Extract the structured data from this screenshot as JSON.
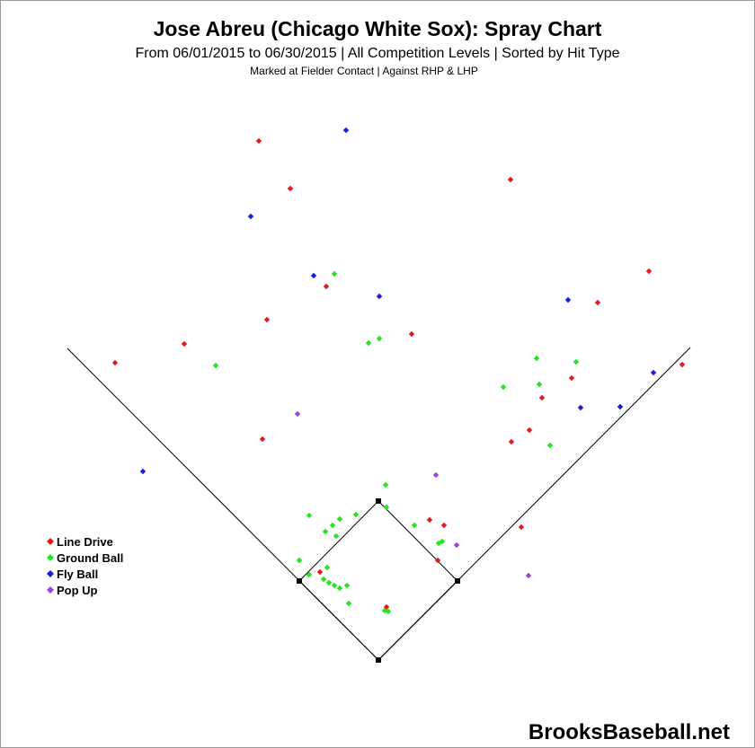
{
  "chart_data": {
    "type": "scatter",
    "title": "Jose Abreu (Chicago White Sox): Spray Chart",
    "subtitle": "From 06/01/2015 to 06/30/2015 | All Competition Levels | Sorted by Hit Type",
    "caption": "Marked at Fielder Contact |   Against RHP & LHP",
    "watermark": "BrooksBaseball.net",
    "xlim": [
      -421,
      419
    ],
    "ylim": [
      -98,
      735
    ],
    "legend": "lower left",
    "series": [
      {
        "name": "Line Drive",
        "color": "#e41a1c",
        "x": [
          -133,
          -98,
          147,
          301,
          -58,
          244,
          -124,
          37,
          -216,
          -293,
          338,
          215,
          182,
          -129,
          148,
          168,
          57,
          73,
          159,
          66,
          -65,
          9
        ],
        "values": [
          578,
          525,
          535,
          433,
          416,
          398,
          379,
          363,
          352,
          331,
          329,
          314,
          292,
          246,
          243,
          256,
          156,
          150,
          148,
          111,
          98,
          59
        ]
      },
      {
        "name": "Ground Ball",
        "color": "#22e622",
        "x": [
          -49,
          1,
          -11,
          -181,
          176,
          220,
          139,
          179,
          191,
          8,
          9,
          -25,
          -77,
          -43,
          -51,
          -59,
          -47,
          40,
          71,
          67,
          -88,
          -57,
          -77,
          -61,
          -55,
          -49,
          -43,
          -35,
          -33,
          7,
          11
        ],
        "values": [
          430,
          358,
          353,
          328,
          336,
          332,
          304,
          307,
          239,
          195,
          170,
          162,
          161,
          157,
          150,
          143,
          138,
          150,
          132,
          130,
          111,
          103,
          95,
          90,
          86,
          83,
          80,
          83,
          63,
          55,
          54
        ]
      },
      {
        "name": "Fly Ball",
        "color": "#1a1ae0",
        "x": [
          -36,
          -142,
          -72,
          1,
          211,
          306,
          225,
          269,
          -262
        ],
        "values": [
          590,
          494,
          428,
          405,
          401,
          320,
          281,
          282,
          210
        ]
      },
      {
        "name": "Pop Up",
        "color": "#a040e0",
        "x": [
          -90,
          64,
          87,
          167
        ],
        "values": [
          274,
          206,
          128,
          94
        ]
      }
    ]
  }
}
